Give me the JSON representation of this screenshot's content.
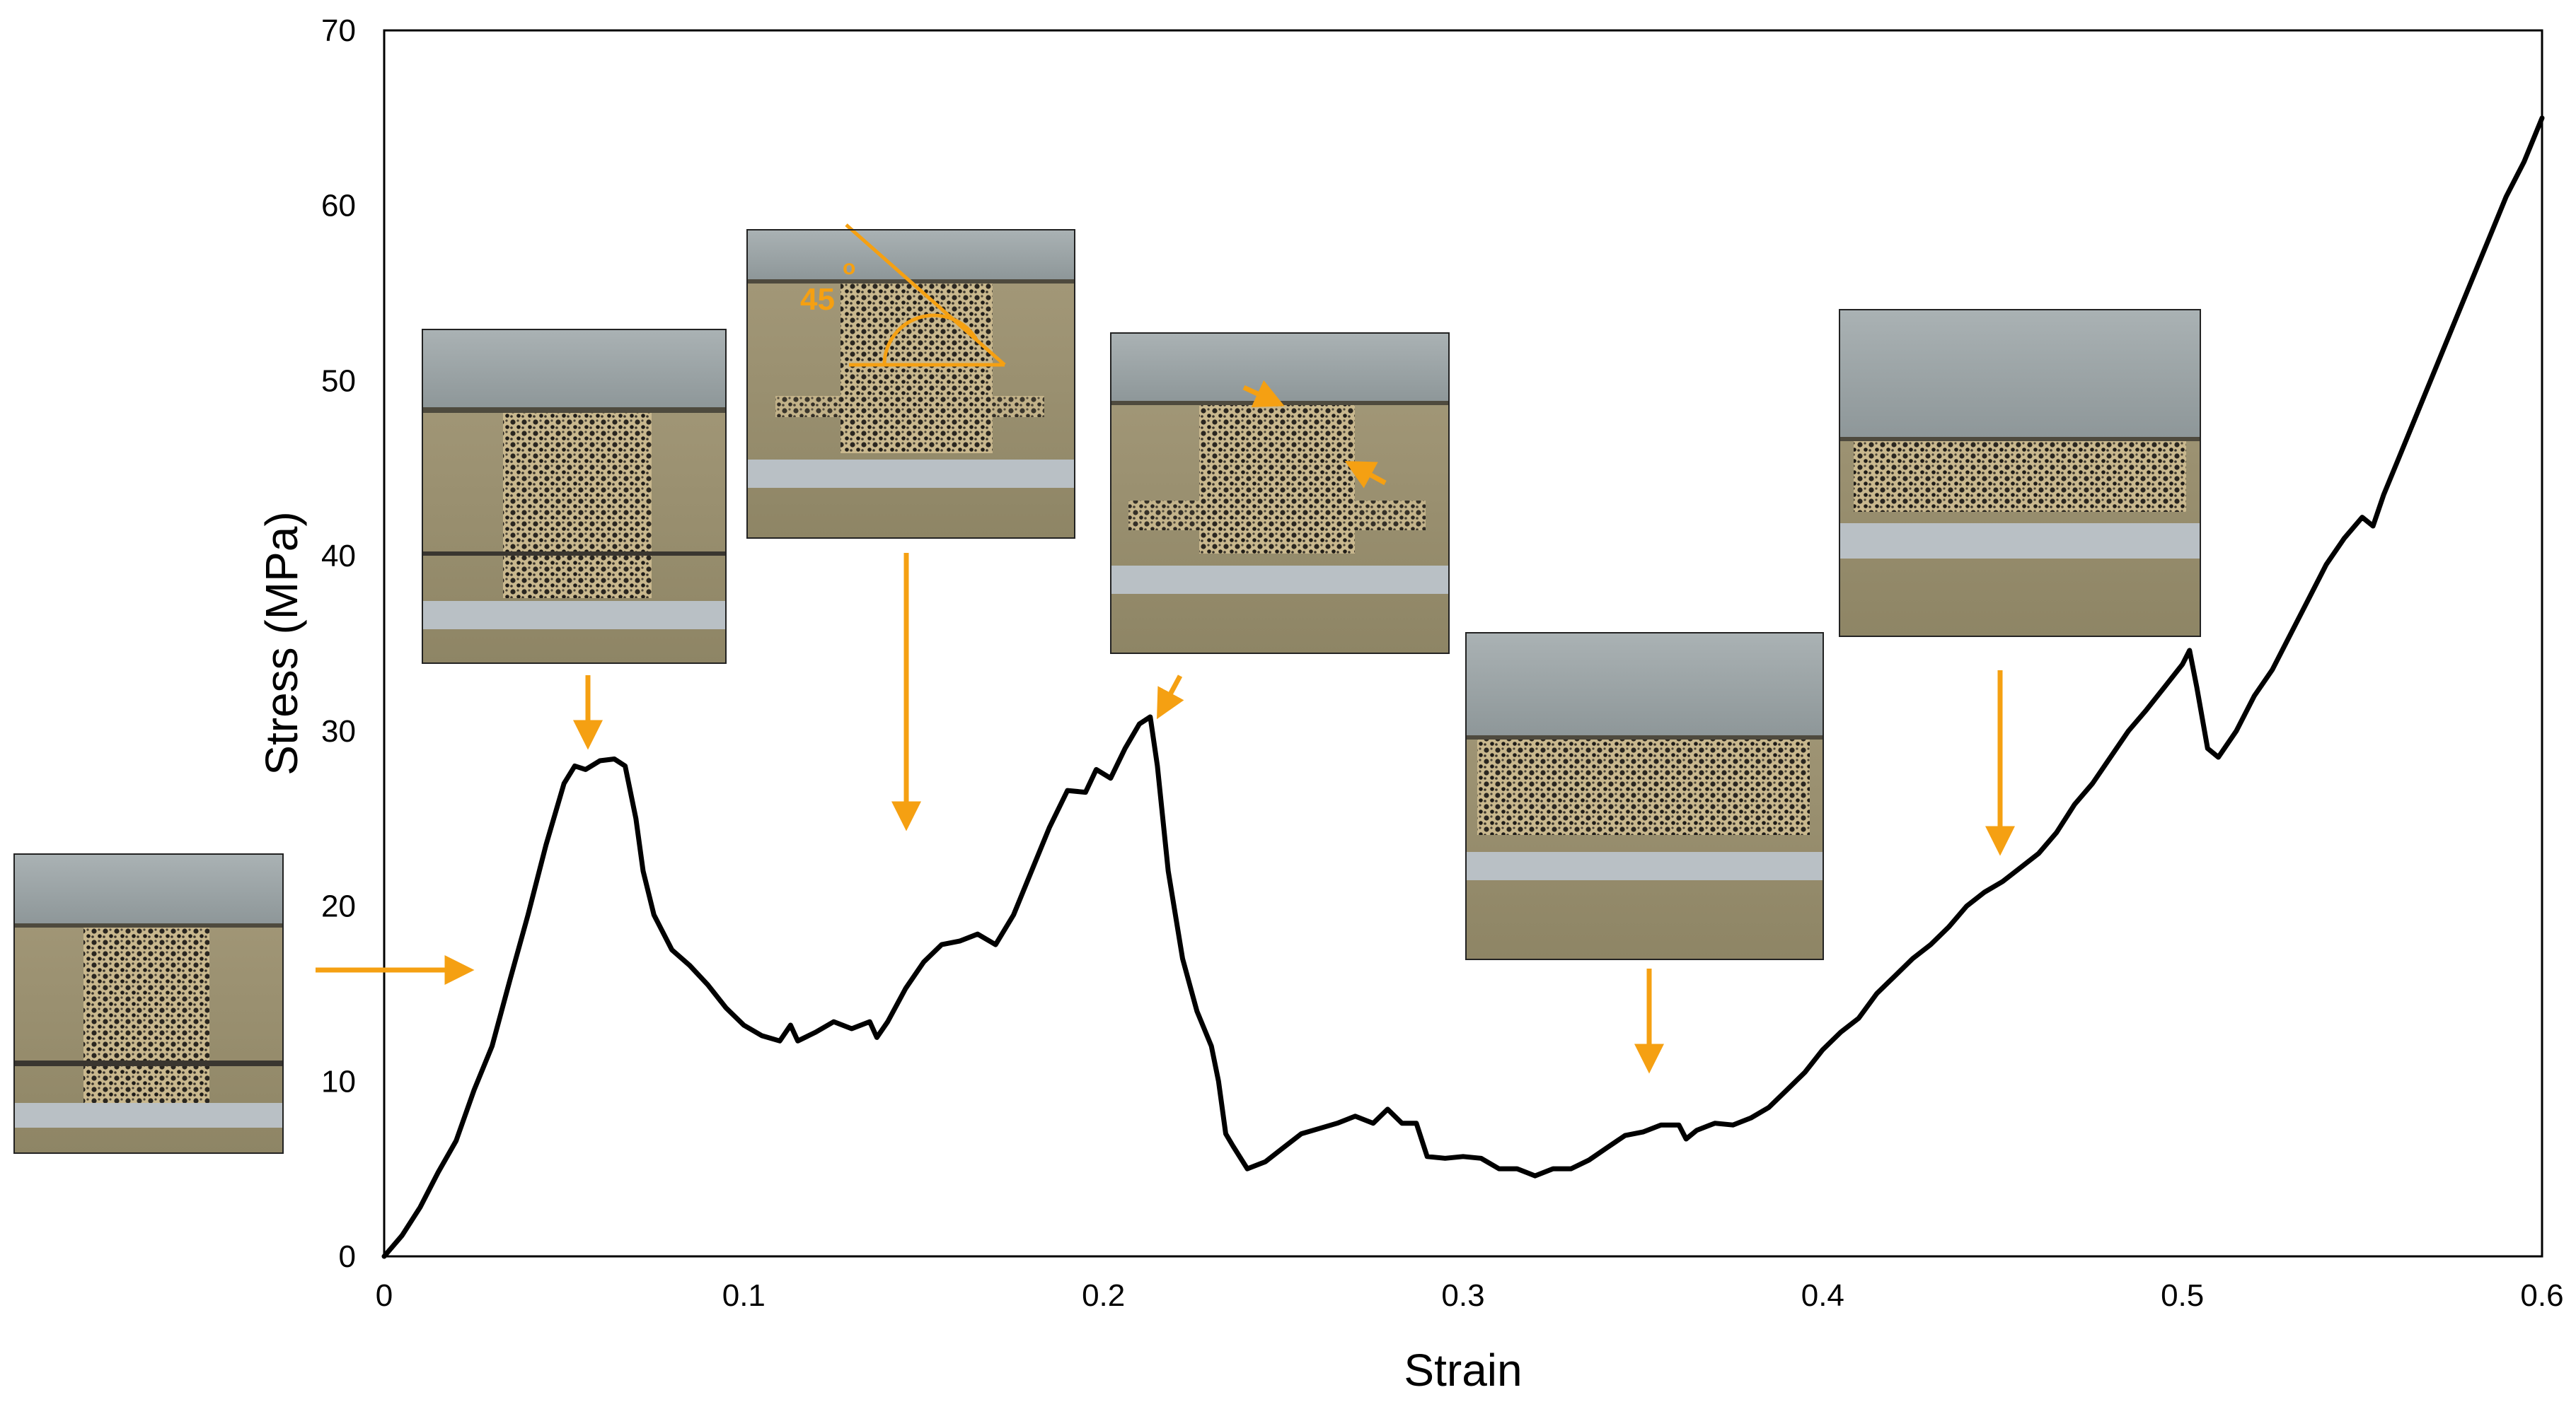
{
  "chart_data": {
    "type": "line",
    "title": "",
    "xlabel": "Strain",
    "ylabel": "Stress (MPa)",
    "xlim": [
      0,
      0.6
    ],
    "ylim": [
      0,
      70
    ],
    "x_ticks": [
      "0",
      "0.1",
      "0.2",
      "0.3",
      "0.4",
      "0.5",
      "0.6"
    ],
    "y_ticks": [
      "0",
      "10",
      "20",
      "30",
      "40",
      "50",
      "60",
      "70"
    ],
    "grid": false,
    "legend": "none",
    "series": [
      {
        "color": "#000000",
        "points": [
          [
            0.0,
            0.0
          ],
          [
            0.005,
            1.2
          ],
          [
            0.01,
            2.8
          ],
          [
            0.015,
            4.8
          ],
          [
            0.02,
            6.6
          ],
          [
            0.025,
            9.5
          ],
          [
            0.03,
            12.0
          ],
          [
            0.035,
            15.8
          ],
          [
            0.04,
            19.5
          ],
          [
            0.045,
            23.5
          ],
          [
            0.05,
            27.0
          ],
          [
            0.053,
            28.0
          ],
          [
            0.056,
            27.8
          ],
          [
            0.06,
            28.3
          ],
          [
            0.064,
            28.4
          ],
          [
            0.067,
            28.0
          ],
          [
            0.07,
            25.0
          ],
          [
            0.072,
            22.0
          ],
          [
            0.075,
            19.5
          ],
          [
            0.08,
            17.5
          ],
          [
            0.085,
            16.6
          ],
          [
            0.09,
            15.5
          ],
          [
            0.095,
            14.2
          ],
          [
            0.1,
            13.2
          ],
          [
            0.105,
            12.6
          ],
          [
            0.11,
            12.3
          ],
          [
            0.113,
            13.2
          ],
          [
            0.115,
            12.3
          ],
          [
            0.12,
            12.8
          ],
          [
            0.125,
            13.4
          ],
          [
            0.13,
            13.0
          ],
          [
            0.135,
            13.4
          ],
          [
            0.137,
            12.5
          ],
          [
            0.14,
            13.4
          ],
          [
            0.145,
            15.3
          ],
          [
            0.15,
            16.8
          ],
          [
            0.155,
            17.8
          ],
          [
            0.16,
            18.0
          ],
          [
            0.165,
            18.4
          ],
          [
            0.17,
            17.8
          ],
          [
            0.175,
            19.5
          ],
          [
            0.18,
            22.0
          ],
          [
            0.185,
            24.5
          ],
          [
            0.19,
            26.6
          ],
          [
            0.195,
            26.5
          ],
          [
            0.198,
            27.8
          ],
          [
            0.202,
            27.3
          ],
          [
            0.206,
            29.0
          ],
          [
            0.21,
            30.4
          ],
          [
            0.213,
            30.8
          ],
          [
            0.215,
            28.0
          ],
          [
            0.218,
            22.0
          ],
          [
            0.222,
            17.0
          ],
          [
            0.226,
            14.0
          ],
          [
            0.23,
            12.0
          ],
          [
            0.232,
            10.0
          ],
          [
            0.234,
            7.0
          ],
          [
            0.236,
            6.3
          ],
          [
            0.24,
            5.0
          ],
          [
            0.245,
            5.4
          ],
          [
            0.25,
            6.2
          ],
          [
            0.255,
            7.0
          ],
          [
            0.26,
            7.3
          ],
          [
            0.265,
            7.6
          ],
          [
            0.27,
            8.0
          ],
          [
            0.275,
            7.6
          ],
          [
            0.279,
            8.4
          ],
          [
            0.283,
            7.6
          ],
          [
            0.287,
            7.6
          ],
          [
            0.29,
            5.7
          ],
          [
            0.295,
            5.6
          ],
          [
            0.3,
            5.7
          ],
          [
            0.305,
            5.6
          ],
          [
            0.31,
            5.0
          ],
          [
            0.315,
            5.0
          ],
          [
            0.32,
            4.6
          ],
          [
            0.325,
            5.0
          ],
          [
            0.33,
            5.0
          ],
          [
            0.335,
            5.5
          ],
          [
            0.34,
            6.2
          ],
          [
            0.345,
            6.9
          ],
          [
            0.35,
            7.1
          ],
          [
            0.355,
            7.5
          ],
          [
            0.36,
            7.5
          ],
          [
            0.362,
            6.7
          ],
          [
            0.365,
            7.2
          ],
          [
            0.37,
            7.6
          ],
          [
            0.375,
            7.5
          ],
          [
            0.38,
            7.9
          ],
          [
            0.385,
            8.5
          ],
          [
            0.39,
            9.5
          ],
          [
            0.395,
            10.5
          ],
          [
            0.4,
            11.8
          ],
          [
            0.405,
            12.8
          ],
          [
            0.41,
            13.6
          ],
          [
            0.415,
            15.0
          ],
          [
            0.42,
            16.0
          ],
          [
            0.425,
            17.0
          ],
          [
            0.43,
            17.8
          ],
          [
            0.435,
            18.8
          ],
          [
            0.44,
            20.0
          ],
          [
            0.445,
            20.8
          ],
          [
            0.45,
            21.4
          ],
          [
            0.455,
            22.2
          ],
          [
            0.46,
            23.0
          ],
          [
            0.465,
            24.2
          ],
          [
            0.47,
            25.8
          ],
          [
            0.475,
            27.0
          ],
          [
            0.48,
            28.5
          ],
          [
            0.485,
            30.0
          ],
          [
            0.49,
            31.2
          ],
          [
            0.495,
            32.5
          ],
          [
            0.5,
            33.8
          ],
          [
            0.502,
            34.6
          ],
          [
            0.504,
            32.5
          ],
          [
            0.507,
            29.0
          ],
          [
            0.51,
            28.5
          ],
          [
            0.515,
            30.0
          ],
          [
            0.52,
            32.0
          ],
          [
            0.525,
            33.5
          ],
          [
            0.53,
            35.5
          ],
          [
            0.535,
            37.5
          ],
          [
            0.54,
            39.5
          ],
          [
            0.545,
            41.0
          ],
          [
            0.55,
            42.2
          ],
          [
            0.553,
            41.7
          ],
          [
            0.556,
            43.5
          ],
          [
            0.56,
            45.5
          ],
          [
            0.565,
            48.0
          ],
          [
            0.57,
            50.5
          ],
          [
            0.575,
            53.0
          ],
          [
            0.58,
            55.5
          ],
          [
            0.585,
            58.0
          ],
          [
            0.59,
            60.5
          ],
          [
            0.595,
            62.5
          ],
          [
            0.6,
            65.0
          ]
        ]
      }
    ],
    "annotations": {
      "angle_label": "45",
      "degree_mark": "o",
      "accent_color": "#f5a012"
    }
  }
}
